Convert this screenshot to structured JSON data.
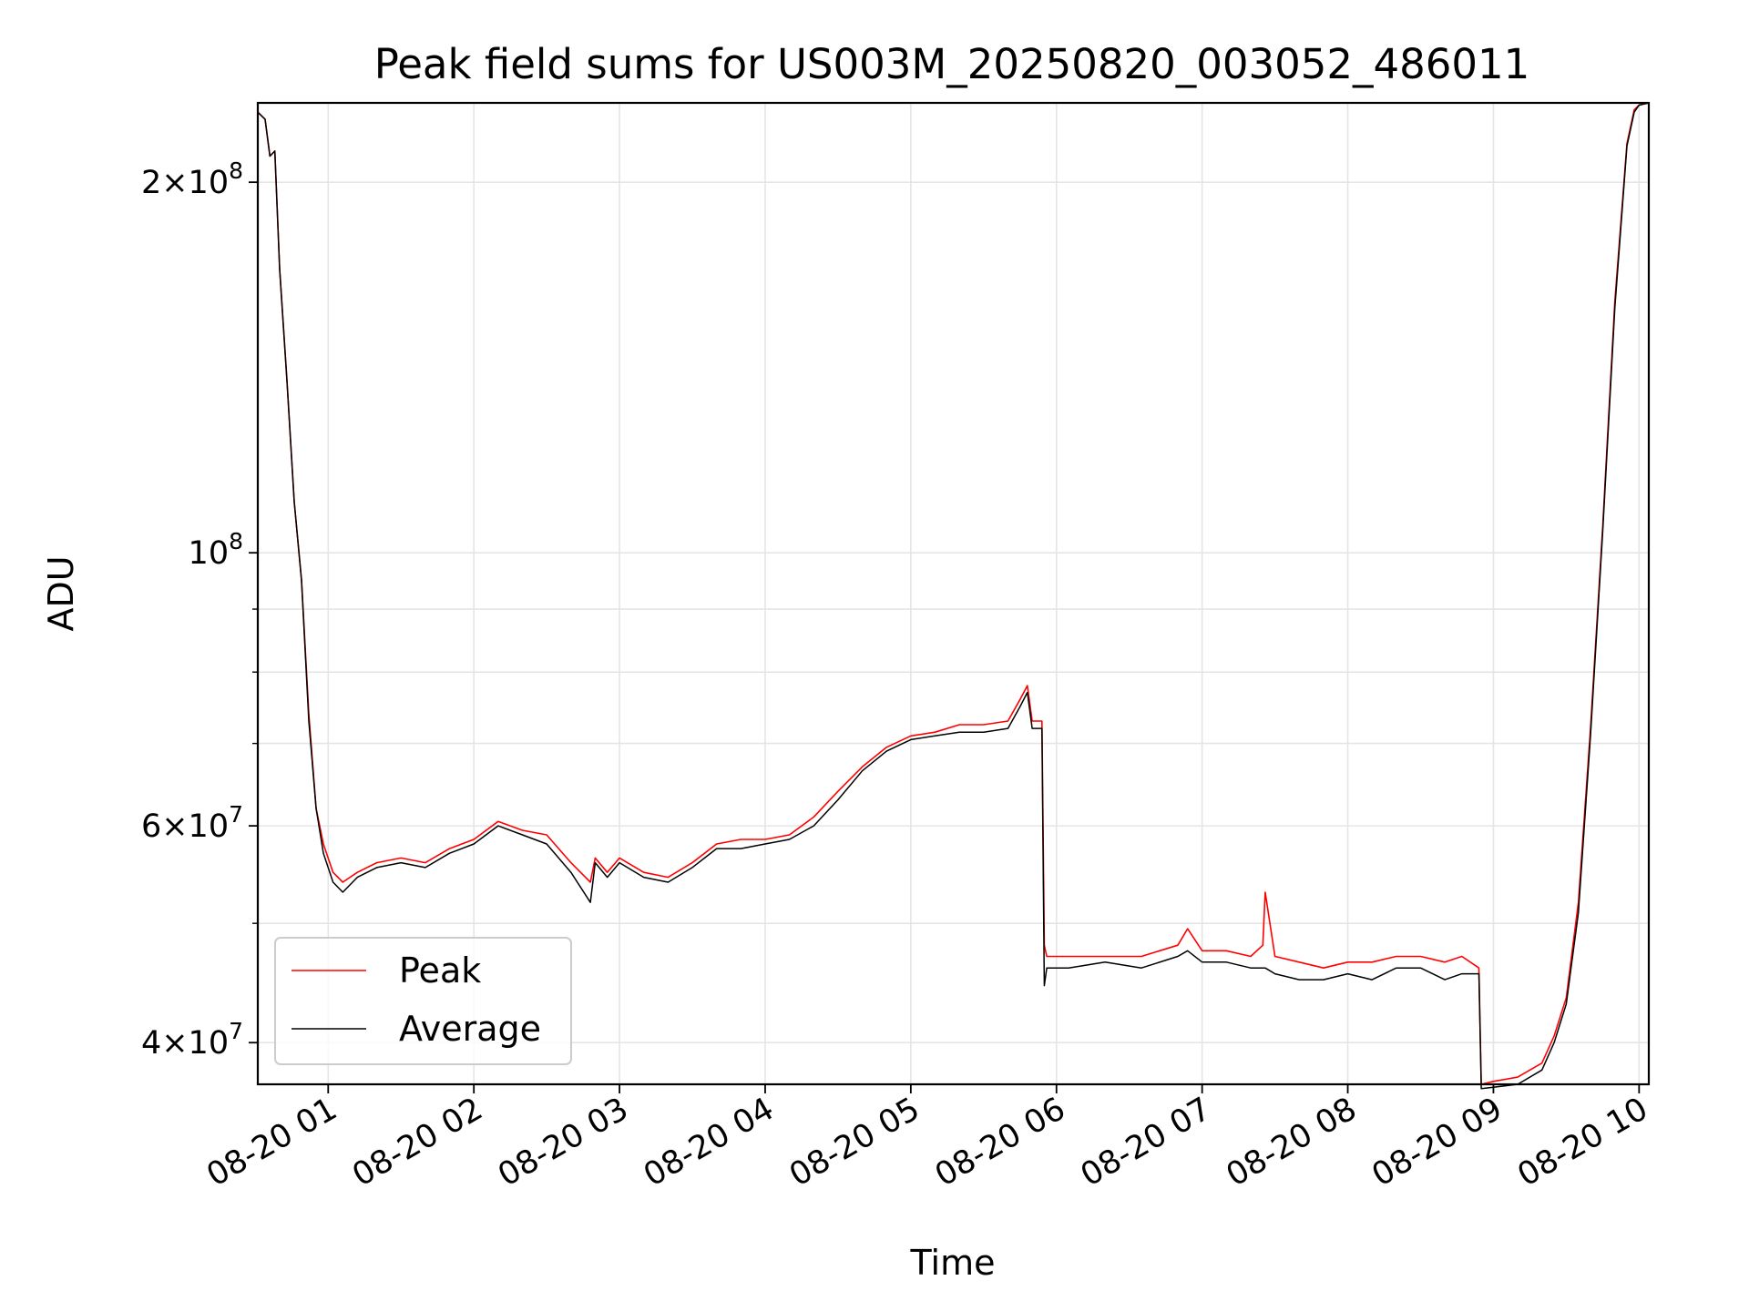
{
  "chart_data": {
    "type": "line",
    "title": "Peak field sums for US003M_20250820_003052_486011",
    "xlabel": "Time",
    "ylabel": "ADU",
    "x_scale": "time",
    "y_scale": "log",
    "xlim": [
      "2025-08-20 00:31",
      "2025-08-20 10:04"
    ],
    "ylim": [
      37000000,
      232000000
    ],
    "grid": true,
    "legend_position": "lower-left",
    "x_ticks": [
      {
        "value": "2025-08-20 01:00",
        "label": "08-20 01"
      },
      {
        "value": "2025-08-20 02:00",
        "label": "08-20 02"
      },
      {
        "value": "2025-08-20 03:00",
        "label": "08-20 03"
      },
      {
        "value": "2025-08-20 04:00",
        "label": "08-20 04"
      },
      {
        "value": "2025-08-20 05:00",
        "label": "08-20 05"
      },
      {
        "value": "2025-08-20 06:00",
        "label": "08-20 06"
      },
      {
        "value": "2025-08-20 07:00",
        "label": "08-20 07"
      },
      {
        "value": "2025-08-20 08:00",
        "label": "08-20 08"
      },
      {
        "value": "2025-08-20 09:00",
        "label": "08-20 09"
      },
      {
        "value": "2025-08-20 10:00",
        "label": "08-20 10"
      }
    ],
    "y_major_ticks": [
      {
        "value": 40000000,
        "mantissa": "4",
        "base": "10",
        "exp": "7"
      },
      {
        "value": 60000000,
        "mantissa": "6",
        "base": "10",
        "exp": "7"
      },
      {
        "value": 100000000,
        "mantissa": "",
        "base": "10",
        "exp": "8"
      },
      {
        "value": 200000000,
        "mantissa": "2",
        "base": "10",
        "exp": "8"
      }
    ],
    "y_minor_ticks": [
      50000000,
      70000000,
      80000000,
      90000000
    ],
    "series": [
      {
        "name": "Peak",
        "color": "#ff0000",
        "x": [
          "2025-08-20 00:31",
          "2025-08-20 00:34",
          "2025-08-20 00:36",
          "2025-08-20 00:38",
          "2025-08-20 00:40",
          "2025-08-20 00:43",
          "2025-08-20 00:46",
          "2025-08-20 00:49",
          "2025-08-20 00:52",
          "2025-08-20 00:55",
          "2025-08-20 00:58",
          "2025-08-20 01:02",
          "2025-08-20 01:06",
          "2025-08-20 01:12",
          "2025-08-20 01:20",
          "2025-08-20 01:30",
          "2025-08-20 01:40",
          "2025-08-20 01:50",
          "2025-08-20 02:00",
          "2025-08-20 02:10",
          "2025-08-20 02:20",
          "2025-08-20 02:30",
          "2025-08-20 02:40",
          "2025-08-20 02:48",
          "2025-08-20 02:50",
          "2025-08-20 02:55",
          "2025-08-20 03:00",
          "2025-08-20 03:10",
          "2025-08-20 03:20",
          "2025-08-20 03:30",
          "2025-08-20 03:40",
          "2025-08-20 03:50",
          "2025-08-20 04:00",
          "2025-08-20 04:10",
          "2025-08-20 04:20",
          "2025-08-20 04:30",
          "2025-08-20 04:40",
          "2025-08-20 04:50",
          "2025-08-20 05:00",
          "2025-08-20 05:10",
          "2025-08-20 05:20",
          "2025-08-20 05:30",
          "2025-08-20 05:40",
          "2025-08-20 05:45",
          "2025-08-20 05:48",
          "2025-08-20 05:50",
          "2025-08-20 05:54",
          "2025-08-20 05:55",
          "2025-08-20 05:56",
          "2025-08-20 06:05",
          "2025-08-20 06:20",
          "2025-08-20 06:35",
          "2025-08-20 06:50",
          "2025-08-20 06:54",
          "2025-08-20 07:00",
          "2025-08-20 07:10",
          "2025-08-20 07:20",
          "2025-08-20 07:25",
          "2025-08-20 07:26",
          "2025-08-20 07:30",
          "2025-08-20 07:40",
          "2025-08-20 07:50",
          "2025-08-20 08:00",
          "2025-08-20 08:10",
          "2025-08-20 08:20",
          "2025-08-20 08:30",
          "2025-08-20 08:40",
          "2025-08-20 08:47",
          "2025-08-20 08:54",
          "2025-08-20 08:55",
          "2025-08-20 09:00",
          "2025-08-20 09:10",
          "2025-08-20 09:20",
          "2025-08-20 09:25",
          "2025-08-20 09:30",
          "2025-08-20 09:35",
          "2025-08-20 09:40",
          "2025-08-20 09:45",
          "2025-08-20 09:50",
          "2025-08-20 09:55",
          "2025-08-20 09:58",
          "2025-08-20 10:00",
          "2025-08-20 10:04"
        ],
        "y": [
          228000000,
          225000000,
          210000000,
          212000000,
          170000000,
          138000000,
          110000000,
          95000000,
          74000000,
          62000000,
          58000000,
          55000000,
          54000000,
          55000000,
          56000000,
          56500000,
          56000000,
          57500000,
          58500000,
          60500000,
          59500000,
          59000000,
          56000000,
          54000000,
          56500000,
          55000000,
          56500000,
          55000000,
          54500000,
          56000000,
          58000000,
          58500000,
          58500000,
          59000000,
          61000000,
          64000000,
          67000000,
          69500000,
          71000000,
          71500000,
          72500000,
          72500000,
          73000000,
          76000000,
          78000000,
          73000000,
          73000000,
          48000000,
          47000000,
          47000000,
          47000000,
          47000000,
          48000000,
          49500000,
          47500000,
          47500000,
          47000000,
          48000000,
          53000000,
          47000000,
          46500000,
          46000000,
          46500000,
          46500000,
          47000000,
          47000000,
          46500000,
          47000000,
          46000000,
          37000000,
          37200000,
          37500000,
          38500000,
          40500000,
          43500000,
          52000000,
          72000000,
          105000000,
          160000000,
          215000000,
          229000000,
          231000000,
          232000000
        ]
      },
      {
        "name": "Average",
        "color": "#000000",
        "x": [
          "2025-08-20 00:31",
          "2025-08-20 00:34",
          "2025-08-20 00:36",
          "2025-08-20 00:38",
          "2025-08-20 00:40",
          "2025-08-20 00:43",
          "2025-08-20 00:46",
          "2025-08-20 00:49",
          "2025-08-20 00:52",
          "2025-08-20 00:55",
          "2025-08-20 00:58",
          "2025-08-20 01:02",
          "2025-08-20 01:06",
          "2025-08-20 01:12",
          "2025-08-20 01:20",
          "2025-08-20 01:30",
          "2025-08-20 01:40",
          "2025-08-20 01:50",
          "2025-08-20 02:00",
          "2025-08-20 02:10",
          "2025-08-20 02:20",
          "2025-08-20 02:30",
          "2025-08-20 02:40",
          "2025-08-20 02:48",
          "2025-08-20 02:50",
          "2025-08-20 02:55",
          "2025-08-20 03:00",
          "2025-08-20 03:10",
          "2025-08-20 03:20",
          "2025-08-20 03:30",
          "2025-08-20 03:40",
          "2025-08-20 03:50",
          "2025-08-20 04:00",
          "2025-08-20 04:10",
          "2025-08-20 04:20",
          "2025-08-20 04:30",
          "2025-08-20 04:40",
          "2025-08-20 04:50",
          "2025-08-20 05:00",
          "2025-08-20 05:10",
          "2025-08-20 05:20",
          "2025-08-20 05:30",
          "2025-08-20 05:40",
          "2025-08-20 05:45",
          "2025-08-20 05:48",
          "2025-08-20 05:50",
          "2025-08-20 05:54",
          "2025-08-20 05:55",
          "2025-08-20 05:56",
          "2025-08-20 06:05",
          "2025-08-20 06:20",
          "2025-08-20 06:35",
          "2025-08-20 06:50",
          "2025-08-20 06:54",
          "2025-08-20 07:00",
          "2025-08-20 07:10",
          "2025-08-20 07:20",
          "2025-08-20 07:25",
          "2025-08-20 07:26",
          "2025-08-20 07:30",
          "2025-08-20 07:40",
          "2025-08-20 07:50",
          "2025-08-20 08:00",
          "2025-08-20 08:10",
          "2025-08-20 08:20",
          "2025-08-20 08:30",
          "2025-08-20 08:40",
          "2025-08-20 08:47",
          "2025-08-20 08:54",
          "2025-08-20 08:55",
          "2025-08-20 09:00",
          "2025-08-20 09:10",
          "2025-08-20 09:20",
          "2025-08-20 09:25",
          "2025-08-20 09:30",
          "2025-08-20 09:35",
          "2025-08-20 09:40",
          "2025-08-20 09:45",
          "2025-08-20 09:50",
          "2025-08-20 09:55",
          "2025-08-20 09:58",
          "2025-08-20 10:00",
          "2025-08-20 10:04"
        ],
        "y": [
          228000000,
          225000000,
          210000000,
          212000000,
          170000000,
          138000000,
          110000000,
          95000000,
          73000000,
          62000000,
          57000000,
          54000000,
          53000000,
          54500000,
          55500000,
          56000000,
          55500000,
          57000000,
          58000000,
          60000000,
          59000000,
          58000000,
          55000000,
          52000000,
          56000000,
          54500000,
          56000000,
          54500000,
          54000000,
          55500000,
          57500000,
          57500000,
          58000000,
          58500000,
          60000000,
          63000000,
          66500000,
          69000000,
          70500000,
          71000000,
          71500000,
          71500000,
          72000000,
          75000000,
          77000000,
          72000000,
          72000000,
          44500000,
          46000000,
          46000000,
          46500000,
          46000000,
          47000000,
          47500000,
          46500000,
          46500000,
          46000000,
          46000000,
          46000000,
          45500000,
          45000000,
          45000000,
          45500000,
          45000000,
          46000000,
          46000000,
          45000000,
          45500000,
          45500000,
          36700000,
          36800000,
          37000000,
          38000000,
          40000000,
          43000000,
          51000000,
          71000000,
          104000000,
          158000000,
          214000000,
          228000000,
          231000000,
          232000000
        ]
      }
    ]
  }
}
